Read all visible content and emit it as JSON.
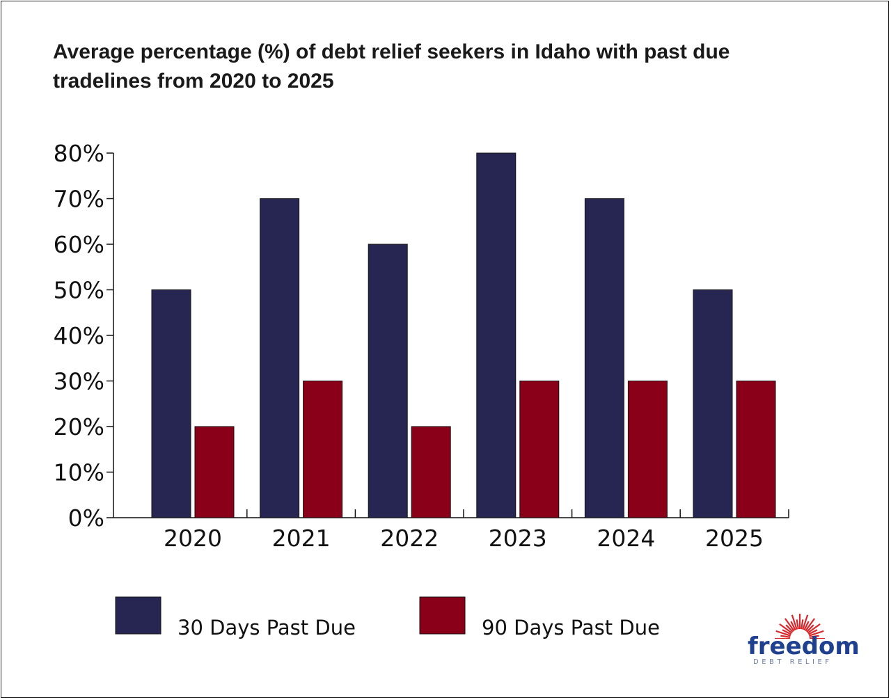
{
  "chart_data": {
    "type": "bar",
    "title": "Average percentage (%) of debt relief seekers in Idaho with past due tradelines from 2020 to 2025",
    "categories": [
      "2020",
      "2021",
      "2022",
      "2023",
      "2024",
      "2025"
    ],
    "series": [
      {
        "name": "30 Days Past Due",
        "color": "#272653",
        "values": [
          50,
          70,
          60,
          80,
          70,
          50
        ]
      },
      {
        "name": "90 Days Past Due",
        "color": "#8b0019",
        "values": [
          20,
          30,
          20,
          30,
          30,
          30
        ]
      }
    ],
    "yticks": [
      "0%",
      "10%",
      "20%",
      "30%",
      "40%",
      "50%",
      "60%",
      "70%",
      "80%"
    ],
    "ylim": [
      0,
      80
    ],
    "xlabel": "",
    "ylabel": "",
    "grid": false,
    "legend_position": "bottom"
  },
  "branding": {
    "logo_word": "freedom",
    "logo_sub": "DEBT RELIEF",
    "logo_color": "#1f3f8f",
    "burst_color": "#d8262b"
  }
}
